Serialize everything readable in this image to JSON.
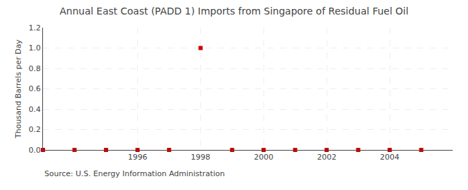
{
  "chart_data": {
    "type": "scatter",
    "title": "Annual East Coast (PADD 1) Imports from Singapore of Residual Fuel Oil",
    "ylabel": "Thousand Barrels per Day",
    "annotations": [
      "Source: U.S. Energy Information Administration"
    ],
    "x": [
      1993,
      1994,
      1995,
      1996,
      1997,
      1998,
      1999,
      2000,
      2001,
      2002,
      2003,
      2004,
      2005
    ],
    "values": [
      0.0,
      0.0,
      0.0,
      0.0,
      0.0,
      1.0,
      0.0,
      0.0,
      0.0,
      0.0,
      0.0,
      0.0,
      0.0
    ],
    "color": "#cc0000",
    "marker": "square",
    "xlim": [
      1993.0,
      2006.0
    ],
    "ylim": [
      0.0,
      1.2
    ],
    "xticks": [
      1996,
      1998,
      2000,
      2002,
      2004
    ],
    "yticks": [
      {
        "value": 0.0,
        "label": "0.0"
      },
      0.2,
      0.4,
      0.6,
      0.8,
      {
        "value": 1.0,
        "label": "1.0"
      },
      1.2
    ],
    "grid": true
  }
}
